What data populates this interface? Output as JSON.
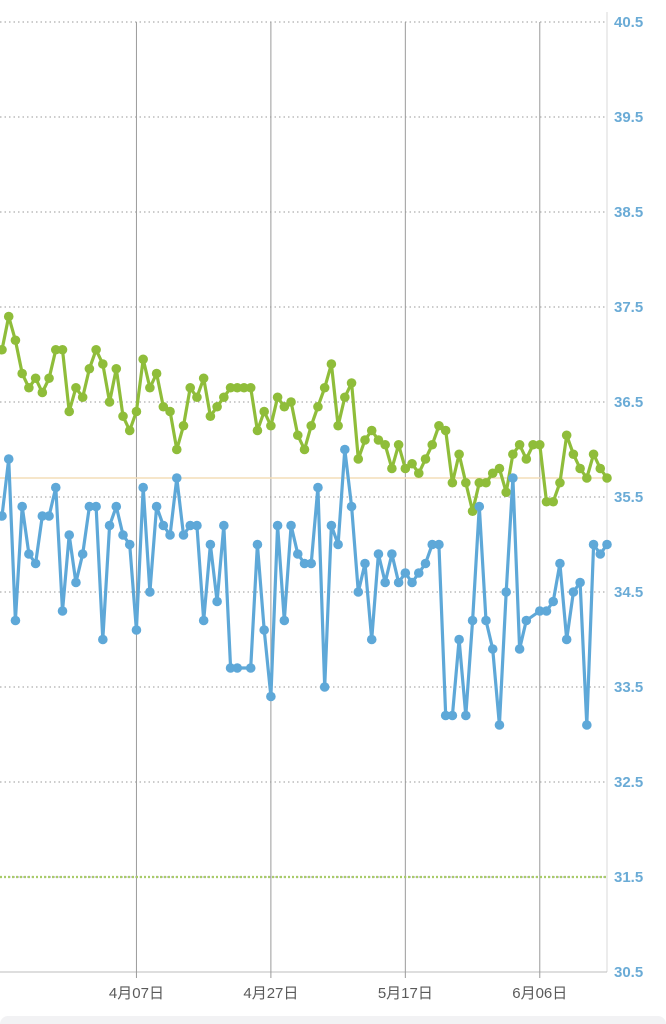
{
  "colors": {
    "series_a": "#8fbd3a",
    "series_b": "#5ea8d8",
    "reference_line": "#f3ddb8",
    "lower_line": "#a9cc6a",
    "grid": "#9a9a9a",
    "y_tick_text": "#6aabd6"
  },
  "chart_data": {
    "type": "line",
    "xlabel": "",
    "ylabel": "",
    "ylim": [
      30.5,
      40.5
    ],
    "yticks": [
      "40.5",
      "39.5",
      "38.5",
      "37.5",
      "36.5",
      "35.5",
      "34.5",
      "33.5",
      "32.5",
      "31.5",
      "30.5"
    ],
    "x_tick_labels": [
      "4月07日",
      "4月27日",
      "5月17日",
      "6月06日"
    ],
    "x_tick_days": [
      20,
      40,
      60,
      80
    ],
    "xlim": [
      0,
      90
    ],
    "grid": "vertical solid at x ticks, horizontal dotted at y ticks",
    "reference_lines": [
      {
        "y": 35.7,
        "style": "solid"
      },
      {
        "y": 31.5,
        "style": "dotted"
      }
    ],
    "series": [
      {
        "x": [
          0,
          1,
          2,
          3,
          4,
          5,
          6,
          7,
          8,
          9,
          10,
          11,
          12,
          13,
          14,
          15,
          16,
          17,
          18,
          19,
          20,
          21,
          22,
          23,
          24,
          25,
          26,
          27,
          28,
          29,
          30,
          31,
          32,
          33,
          34,
          35,
          36,
          37,
          38,
          39,
          40,
          41,
          42,
          43,
          44,
          45,
          46,
          47,
          48,
          49,
          50,
          51,
          52,
          53,
          54,
          55,
          56,
          57,
          58,
          59,
          60,
          61,
          62,
          63,
          64,
          65,
          66,
          67,
          68,
          69,
          70,
          71,
          72,
          73,
          74,
          75,
          76,
          77,
          78,
          79,
          80,
          81,
          82,
          83,
          84,
          85,
          86,
          87,
          88,
          89,
          90
        ],
        "values": [
          37.05,
          37.4,
          37.15,
          36.8,
          36.65,
          36.75,
          36.6,
          36.75,
          37.05,
          37.05,
          36.4,
          36.65,
          36.55,
          36.85,
          37.05,
          36.9,
          36.5,
          36.85,
          36.35,
          36.2,
          36.4,
          36.95,
          36.65,
          36.8,
          36.45,
          36.4,
          36.0,
          36.25,
          36.65,
          36.55,
          36.75,
          36.35,
          36.45,
          36.55,
          36.65,
          36.65,
          36.65,
          36.65,
          36.2,
          36.4,
          36.25,
          36.55,
          36.45,
          36.5,
          36.15,
          36.0,
          36.25,
          36.45,
          36.65,
          36.9,
          36.25,
          36.55,
          36.7,
          35.9,
          36.1,
          36.2,
          36.1,
          36.05,
          35.8,
          36.05,
          35.8,
          35.85,
          35.75,
          35.9,
          36.05,
          36.25,
          36.2,
          35.65,
          35.95,
          35.65,
          35.35,
          35.65,
          35.65,
          35.75,
          35.8,
          35.55,
          35.95,
          36.05,
          35.9,
          36.05,
          36.05,
          35.45,
          35.45,
          35.65,
          36.15,
          35.95,
          35.8,
          35.7,
          35.95,
          35.8,
          35.7
        ]
      },
      {
        "x": [
          0,
          1,
          2,
          3,
          4,
          5,
          6,
          7,
          8,
          9,
          10,
          11,
          12,
          13,
          14,
          15,
          16,
          17,
          18,
          19,
          20,
          21,
          22,
          23,
          24,
          25,
          26,
          27,
          28,
          29,
          30,
          31,
          32,
          33,
          34,
          35,
          37,
          38,
          39,
          40,
          41,
          42,
          43,
          44,
          45,
          46,
          47,
          48,
          49,
          50,
          51,
          52,
          53,
          54,
          55,
          56,
          57,
          58,
          59,
          60,
          61,
          62,
          63,
          64,
          65,
          66,
          67,
          68,
          69,
          70,
          71,
          72,
          73,
          74,
          75,
          76,
          77,
          78,
          80,
          81,
          82,
          83,
          84,
          85,
          86,
          87,
          88,
          89,
          90
        ],
        "values": [
          35.3,
          35.9,
          34.2,
          35.4,
          34.9,
          34.8,
          35.3,
          35.3,
          35.6,
          34.3,
          35.1,
          34.6,
          34.9,
          35.4,
          35.4,
          34.0,
          35.2,
          35.4,
          35.1,
          35.0,
          34.1,
          35.6,
          34.5,
          35.4,
          35.2,
          35.1,
          35.7,
          35.1,
          35.2,
          35.2,
          34.2,
          35.0,
          34.4,
          35.2,
          33.7,
          33.7,
          33.7,
          35.0,
          34.1,
          33.4,
          35.2,
          34.2,
          35.2,
          34.9,
          34.8,
          34.8,
          35.6,
          33.5,
          35.2,
          35.0,
          36.0,
          35.4,
          34.5,
          34.8,
          34.0,
          34.9,
          34.6,
          34.9,
          34.6,
          34.7,
          34.6,
          34.7,
          34.8,
          35.0,
          35.0,
          33.2,
          33.2,
          34.0,
          33.2,
          34.2,
          35.4,
          34.2,
          33.9,
          33.1,
          34.5,
          35.7,
          33.9,
          34.2,
          34.3,
          34.3,
          34.4,
          34.8,
          34.0,
          34.5,
          34.6,
          33.1,
          35.0,
          34.9,
          35.0
        ]
      }
    ]
  }
}
